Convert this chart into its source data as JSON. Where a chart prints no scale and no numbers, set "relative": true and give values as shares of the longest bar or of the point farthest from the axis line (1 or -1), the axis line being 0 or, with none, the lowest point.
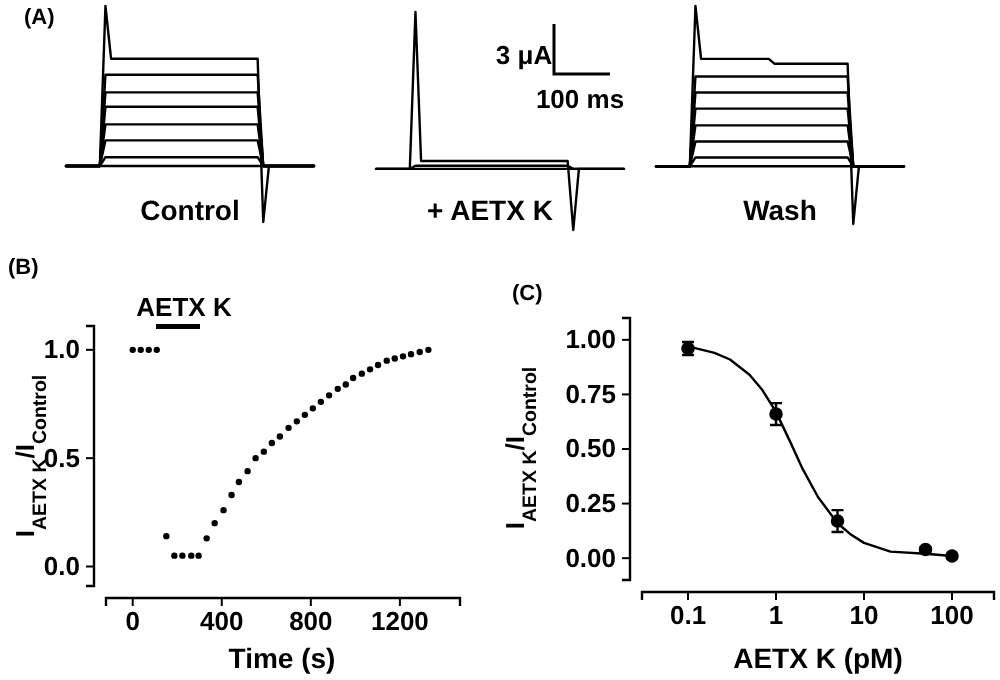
{
  "chart_data": [
    {
      "type": "line",
      "relative": true,
      "xlabel": "Control",
      "annotations": [
        "(A)"
      ],
      "categories": [
        null,
        null,
        null,
        null,
        null,
        null,
        null,
        null,
        null,
        null,
        null,
        null,
        null,
        null,
        null,
        null,
        null,
        null,
        null,
        null,
        null,
        null,
        null,
        null,
        null,
        null,
        null,
        null,
        null,
        null,
        null,
        null,
        null,
        null,
        null,
        null,
        null,
        null,
        null,
        null,
        null,
        null,
        null,
        null,
        null
      ],
      "series": [
        {
          "color": "#000000",
          "values": [
            0,
            0,
            0,
            0,
            0,
            0,
            0,
            1,
            0.67,
            0.67,
            0.67,
            0.67,
            0.67,
            0.67,
            0.67,
            0.67,
            0.67,
            0.67,
            0.67,
            0.67,
            0.67,
            0.67,
            0.67,
            0.67,
            0.67,
            0.67,
            0.67,
            0.67,
            0.67,
            0.67,
            0.67,
            0.67,
            0.67,
            0.67,
            0.67,
            -0.35,
            0,
            0,
            0,
            0,
            0,
            0,
            0,
            0,
            0
          ]
        },
        {
          "color": "#000000",
          "values": [
            0,
            0,
            0,
            0,
            0,
            0,
            0,
            0.57,
            0.57,
            0.57,
            0.57,
            0.57,
            0.57,
            0.57,
            0.57,
            0.57,
            0.57,
            0.57,
            0.57,
            0.57,
            0.57,
            0.57,
            0.57,
            0.57,
            0.57,
            0.57,
            0.57,
            0.57,
            0.57,
            0.57,
            0.57,
            0.57,
            0.57,
            0.57,
            0.57,
            0,
            0,
            0,
            0,
            0,
            0,
            0,
            0,
            0,
            0
          ]
        },
        {
          "color": "#000000",
          "values": [
            0,
            0,
            0,
            0,
            0,
            0,
            0,
            0.46,
            0.46,
            0.46,
            0.46,
            0.46,
            0.46,
            0.46,
            0.46,
            0.46,
            0.46,
            0.46,
            0.46,
            0.46,
            0.46,
            0.46,
            0.46,
            0.46,
            0.46,
            0.46,
            0.46,
            0.46,
            0.46,
            0.46,
            0.46,
            0.46,
            0.46,
            0.46,
            0.46,
            0,
            0,
            0,
            0,
            0,
            0,
            0,
            0,
            0,
            0
          ]
        },
        {
          "color": "#000000",
          "values": [
            0,
            0,
            0,
            0,
            0,
            0,
            0,
            0.37,
            0.37,
            0.37,
            0.37,
            0.37,
            0.37,
            0.37,
            0.37,
            0.37,
            0.37,
            0.37,
            0.37,
            0.37,
            0.37,
            0.37,
            0.37,
            0.37,
            0.37,
            0.37,
            0.37,
            0.37,
            0.37,
            0.37,
            0.37,
            0.37,
            0.37,
            0.37,
            0.37,
            0,
            0,
            0,
            0,
            0,
            0,
            0,
            0,
            0,
            0
          ]
        },
        {
          "color": "#000000",
          "values": [
            0,
            0,
            0,
            0,
            0,
            0,
            0,
            0.26,
            0.26,
            0.26,
            0.26,
            0.26,
            0.26,
            0.26,
            0.26,
            0.26,
            0.26,
            0.26,
            0.26,
            0.26,
            0.26,
            0.26,
            0.26,
            0.26,
            0.26,
            0.26,
            0.26,
            0.26,
            0.26,
            0.26,
            0.26,
            0.26,
            0.26,
            0.26,
            0.26,
            0,
            0,
            0,
            0,
            0,
            0,
            0,
            0,
            0,
            0
          ]
        },
        {
          "color": "#000000",
          "values": [
            0,
            0,
            0,
            0,
            0,
            0,
            0,
            0.16,
            0.16,
            0.16,
            0.16,
            0.16,
            0.16,
            0.16,
            0.16,
            0.16,
            0.16,
            0.16,
            0.16,
            0.16,
            0.16,
            0.16,
            0.16,
            0.16,
            0.16,
            0.16,
            0.16,
            0.16,
            0.16,
            0.16,
            0.16,
            0.16,
            0.16,
            0.16,
            0.16,
            0,
            0,
            0,
            0,
            0,
            0,
            0,
            0,
            0,
            0
          ]
        },
        {
          "color": "#000000",
          "values": [
            0,
            0,
            0,
            0,
            0,
            0,
            0,
            0.055,
            0.055,
            0.055,
            0.055,
            0.055,
            0.055,
            0.055,
            0.055,
            0.055,
            0.055,
            0.055,
            0.055,
            0.055,
            0.055,
            0.055,
            0.055,
            0.055,
            0.055,
            0.055,
            0.055,
            0.055,
            0.055,
            0.055,
            0.055,
            0.055,
            0.055,
            0.055,
            0.055,
            0,
            0,
            0,
            0,
            0,
            0,
            0,
            0,
            0,
            0
          ]
        }
      ]
    },
    {
      "type": "line",
      "relative": true,
      "xlabel": "+ AETX K",
      "annotations": [
        "3 μA",
        "100 ms"
      ],
      "categories": [
        null,
        null,
        null,
        null,
        null,
        null,
        null,
        null,
        null,
        null,
        null,
        null,
        null,
        null,
        null,
        null,
        null,
        null,
        null,
        null,
        null,
        null,
        null,
        null,
        null,
        null,
        null,
        null,
        null,
        null,
        null,
        null,
        null,
        null,
        null,
        null,
        null,
        null,
        null,
        null,
        null,
        null,
        null,
        null,
        null
      ],
      "series": [
        {
          "color": "#000000",
          "values": [
            0,
            0,
            0,
            0,
            0,
            0,
            0,
            1,
            0.05,
            0.05,
            0.05,
            0.05,
            0.05,
            0.05,
            0.05,
            0.05,
            0.05,
            0.05,
            0.05,
            0.05,
            0.05,
            0.05,
            0.05,
            0.05,
            0.05,
            0.05,
            0.05,
            0.05,
            0.05,
            0.05,
            0.05,
            0.05,
            0.05,
            0.05,
            0.05,
            -0.39,
            0,
            0,
            0,
            0,
            0,
            0,
            0,
            0,
            0
          ]
        },
        {
          "color": "#000000",
          "values": [
            0,
            0,
            0,
            0,
            0,
            0,
            0,
            0.02,
            0.02,
            0.02,
            0.02,
            0.02,
            0.02,
            0.02,
            0.02,
            0.02,
            0.02,
            0.02,
            0.02,
            0.02,
            0.02,
            0.02,
            0.02,
            0.02,
            0.02,
            0.02,
            0.02,
            0.02,
            0.02,
            0.02,
            0.02,
            0.02,
            0.02,
            0.02,
            0.02,
            0,
            0,
            0,
            0,
            0,
            0,
            0,
            0,
            0,
            0
          ]
        }
      ]
    },
    {
      "type": "line",
      "relative": true,
      "xlabel": "Wash",
      "categories": [
        null,
        null,
        null,
        null,
        null,
        null,
        null,
        null,
        null,
        null,
        null,
        null,
        null,
        null,
        null,
        null,
        null,
        null,
        null,
        null,
        null,
        null,
        null,
        null,
        null,
        null,
        null,
        null,
        null,
        null,
        null,
        null,
        null,
        null,
        null,
        null,
        null,
        null,
        null,
        null,
        null,
        null,
        null,
        null,
        null
      ],
      "series": [
        {
          "color": "#000000",
          "values": [
            0,
            0,
            0,
            0,
            0,
            0,
            0,
            1,
            0.67,
            0.67,
            0.67,
            0.67,
            0.67,
            0.67,
            0.67,
            0.67,
            0.67,
            0.67,
            0.67,
            0.67,
            0.67,
            0.64,
            0.64,
            0.64,
            0.64,
            0.64,
            0.64,
            0.64,
            0.64,
            0.64,
            0.64,
            0.64,
            0.64,
            0.64,
            0.64,
            -0.36,
            0,
            0,
            0,
            0,
            0,
            0,
            0,
            0,
            0
          ]
        },
        {
          "color": "#000000",
          "values": [
            0,
            0,
            0,
            0,
            0,
            0,
            0,
            0.56,
            0.56,
            0.56,
            0.56,
            0.56,
            0.56,
            0.56,
            0.56,
            0.56,
            0.56,
            0.56,
            0.56,
            0.56,
            0.56,
            0.56,
            0.56,
            0.56,
            0.56,
            0.56,
            0.56,
            0.56,
            0.56,
            0.56,
            0.56,
            0.56,
            0.56,
            0.56,
            0.56,
            0,
            0,
            0,
            0,
            0,
            0,
            0,
            0,
            0,
            0
          ]
        },
        {
          "color": "#000000",
          "values": [
            0,
            0,
            0,
            0,
            0,
            0,
            0,
            0.46,
            0.46,
            0.46,
            0.46,
            0.46,
            0.46,
            0.46,
            0.46,
            0.46,
            0.46,
            0.46,
            0.46,
            0.46,
            0.46,
            0.46,
            0.46,
            0.46,
            0.46,
            0.46,
            0.46,
            0.46,
            0.46,
            0.46,
            0.46,
            0.46,
            0.46,
            0.46,
            0.46,
            0,
            0,
            0,
            0,
            0,
            0,
            0,
            0,
            0,
            0
          ]
        },
        {
          "color": "#000000",
          "values": [
            0,
            0,
            0,
            0,
            0,
            0,
            0,
            0.36,
            0.36,
            0.36,
            0.36,
            0.36,
            0.36,
            0.36,
            0.36,
            0.36,
            0.36,
            0.36,
            0.36,
            0.36,
            0.36,
            0.36,
            0.36,
            0.36,
            0.36,
            0.36,
            0.36,
            0.36,
            0.36,
            0.36,
            0.36,
            0.36,
            0.36,
            0.36,
            0.36,
            0,
            0,
            0,
            0,
            0,
            0,
            0,
            0,
            0,
            0
          ]
        },
        {
          "color": "#000000",
          "values": [
            0,
            0,
            0,
            0,
            0,
            0,
            0,
            0.255,
            0.255,
            0.255,
            0.255,
            0.255,
            0.255,
            0.255,
            0.255,
            0.255,
            0.255,
            0.255,
            0.255,
            0.255,
            0.255,
            0.255,
            0.255,
            0.255,
            0.255,
            0.255,
            0.255,
            0.255,
            0.255,
            0.255,
            0.255,
            0.255,
            0.255,
            0.255,
            0.255,
            0,
            0,
            0,
            0,
            0,
            0,
            0,
            0,
            0,
            0
          ]
        },
        {
          "color": "#000000",
          "values": [
            0,
            0,
            0,
            0,
            0,
            0,
            0,
            0.155,
            0.155,
            0.155,
            0.155,
            0.155,
            0.155,
            0.155,
            0.155,
            0.155,
            0.155,
            0.155,
            0.155,
            0.155,
            0.155,
            0.155,
            0.155,
            0.155,
            0.155,
            0.155,
            0.155,
            0.155,
            0.155,
            0.155,
            0.155,
            0.155,
            0.155,
            0.155,
            0.155,
            0,
            0,
            0,
            0,
            0,
            0,
            0,
            0,
            0,
            0
          ]
        },
        {
          "color": "#000000",
          "values": [
            0,
            0,
            0,
            0,
            0,
            0,
            0,
            0.055,
            0.055,
            0.055,
            0.055,
            0.055,
            0.055,
            0.055,
            0.055,
            0.055,
            0.055,
            0.055,
            0.055,
            0.055,
            0.055,
            0.055,
            0.055,
            0.055,
            0.055,
            0.055,
            0.055,
            0.055,
            0.055,
            0.055,
            0.055,
            0.055,
            0.055,
            0.055,
            0.055,
            0,
            0,
            0,
            0,
            0,
            0,
            0,
            0,
            0,
            0
          ]
        }
      ]
    },
    {
      "type": "scatter",
      "marker": "circle",
      "xlabel": "Time (s)",
      "ylabel": "I$_{AETX K}$/I$_{Control}$",
      "annotations": [
        "(B)",
        "AETX K"
      ],
      "xlim": [
        -120,
        1470
      ],
      "ylim": [
        -0.09,
        1.11
      ],
      "xticks": [
        0,
        400,
        800,
        1200
      ],
      "yticks": [
        {
          "value": 0,
          "label": "0.0"
        },
        {
          "value": 0.5,
          "label": "0.5"
        },
        {
          "value": 1,
          "label": "1.0"
        }
      ],
      "series": [
        {
          "color": "#000000",
          "x": [
            0,
            36,
            72,
            108,
            151,
            187,
            223,
            263,
            296,
            332,
            368,
            408,
            444,
            477,
            516,
            552,
            589,
            625,
            661,
            700,
            737,
            773,
            809,
            845,
            882,
            921,
            957,
            990,
            1029,
            1066,
            1102,
            1141,
            1177,
            1214,
            1250,
            1289,
            1328
          ],
          "values": [
            1,
            1,
            1,
            1,
            0.14,
            0.05,
            0.05,
            0.05,
            0.05,
            0.13,
            0.2,
            0.26,
            0.33,
            0.39,
            0.44,
            0.5,
            0.53,
            0.57,
            0.6,
            0.64,
            0.67,
            0.7,
            0.73,
            0.76,
            0.79,
            0.82,
            0.84,
            0.87,
            0.89,
            0.91,
            0.93,
            0.95,
            0.96,
            0.97,
            0.98,
            0.99,
            1
          ]
        }
      ]
    },
    {
      "type": "scatter",
      "log": "x",
      "xlabel": "AETX K (pM)",
      "ylabel": "I$_{AETX K}$/I$_{Control}$",
      "annotations": [
        "(C)"
      ],
      "xlim": [
        0.03,
        300
      ],
      "ylim": [
        -0.1,
        1.1
      ],
      "xticks": [
        0.1,
        1,
        10,
        100
      ],
      "yticks": [
        {
          "value": 0,
          "label": "0.00"
        },
        {
          "value": 0.25,
          "label": "0.25"
        },
        {
          "value": 0.5,
          "label": "0.50"
        },
        {
          "value": 0.75,
          "label": "0.75"
        },
        {
          "value": 1,
          "label": "1.00"
        }
      ],
      "series": [
        {
          "marker": "circle",
          "color": "#000000",
          "x": [
            0.1,
            1,
            5,
            50,
            100
          ],
          "values": [
            0.96,
            0.66,
            0.17,
            0.04,
            0.01
          ],
          "errors": [
            0.03,
            0.05,
            0.05,
            0.01,
            null
          ]
        },
        {
          "type": "line",
          "marker": "none",
          "color": "#000000",
          "x": [
            0.1,
            0.2,
            0.3,
            0.5,
            0.7,
            1,
            1.5,
            2,
            3,
            5,
            7,
            10,
            20,
            50,
            100
          ],
          "values": [
            0.97,
            0.94,
            0.91,
            0.84,
            0.77,
            0.67,
            0.52,
            0.41,
            0.28,
            0.16,
            0.11,
            0.07,
            0.03,
            0.02,
            0.01
          ]
        }
      ]
    }
  ]
}
